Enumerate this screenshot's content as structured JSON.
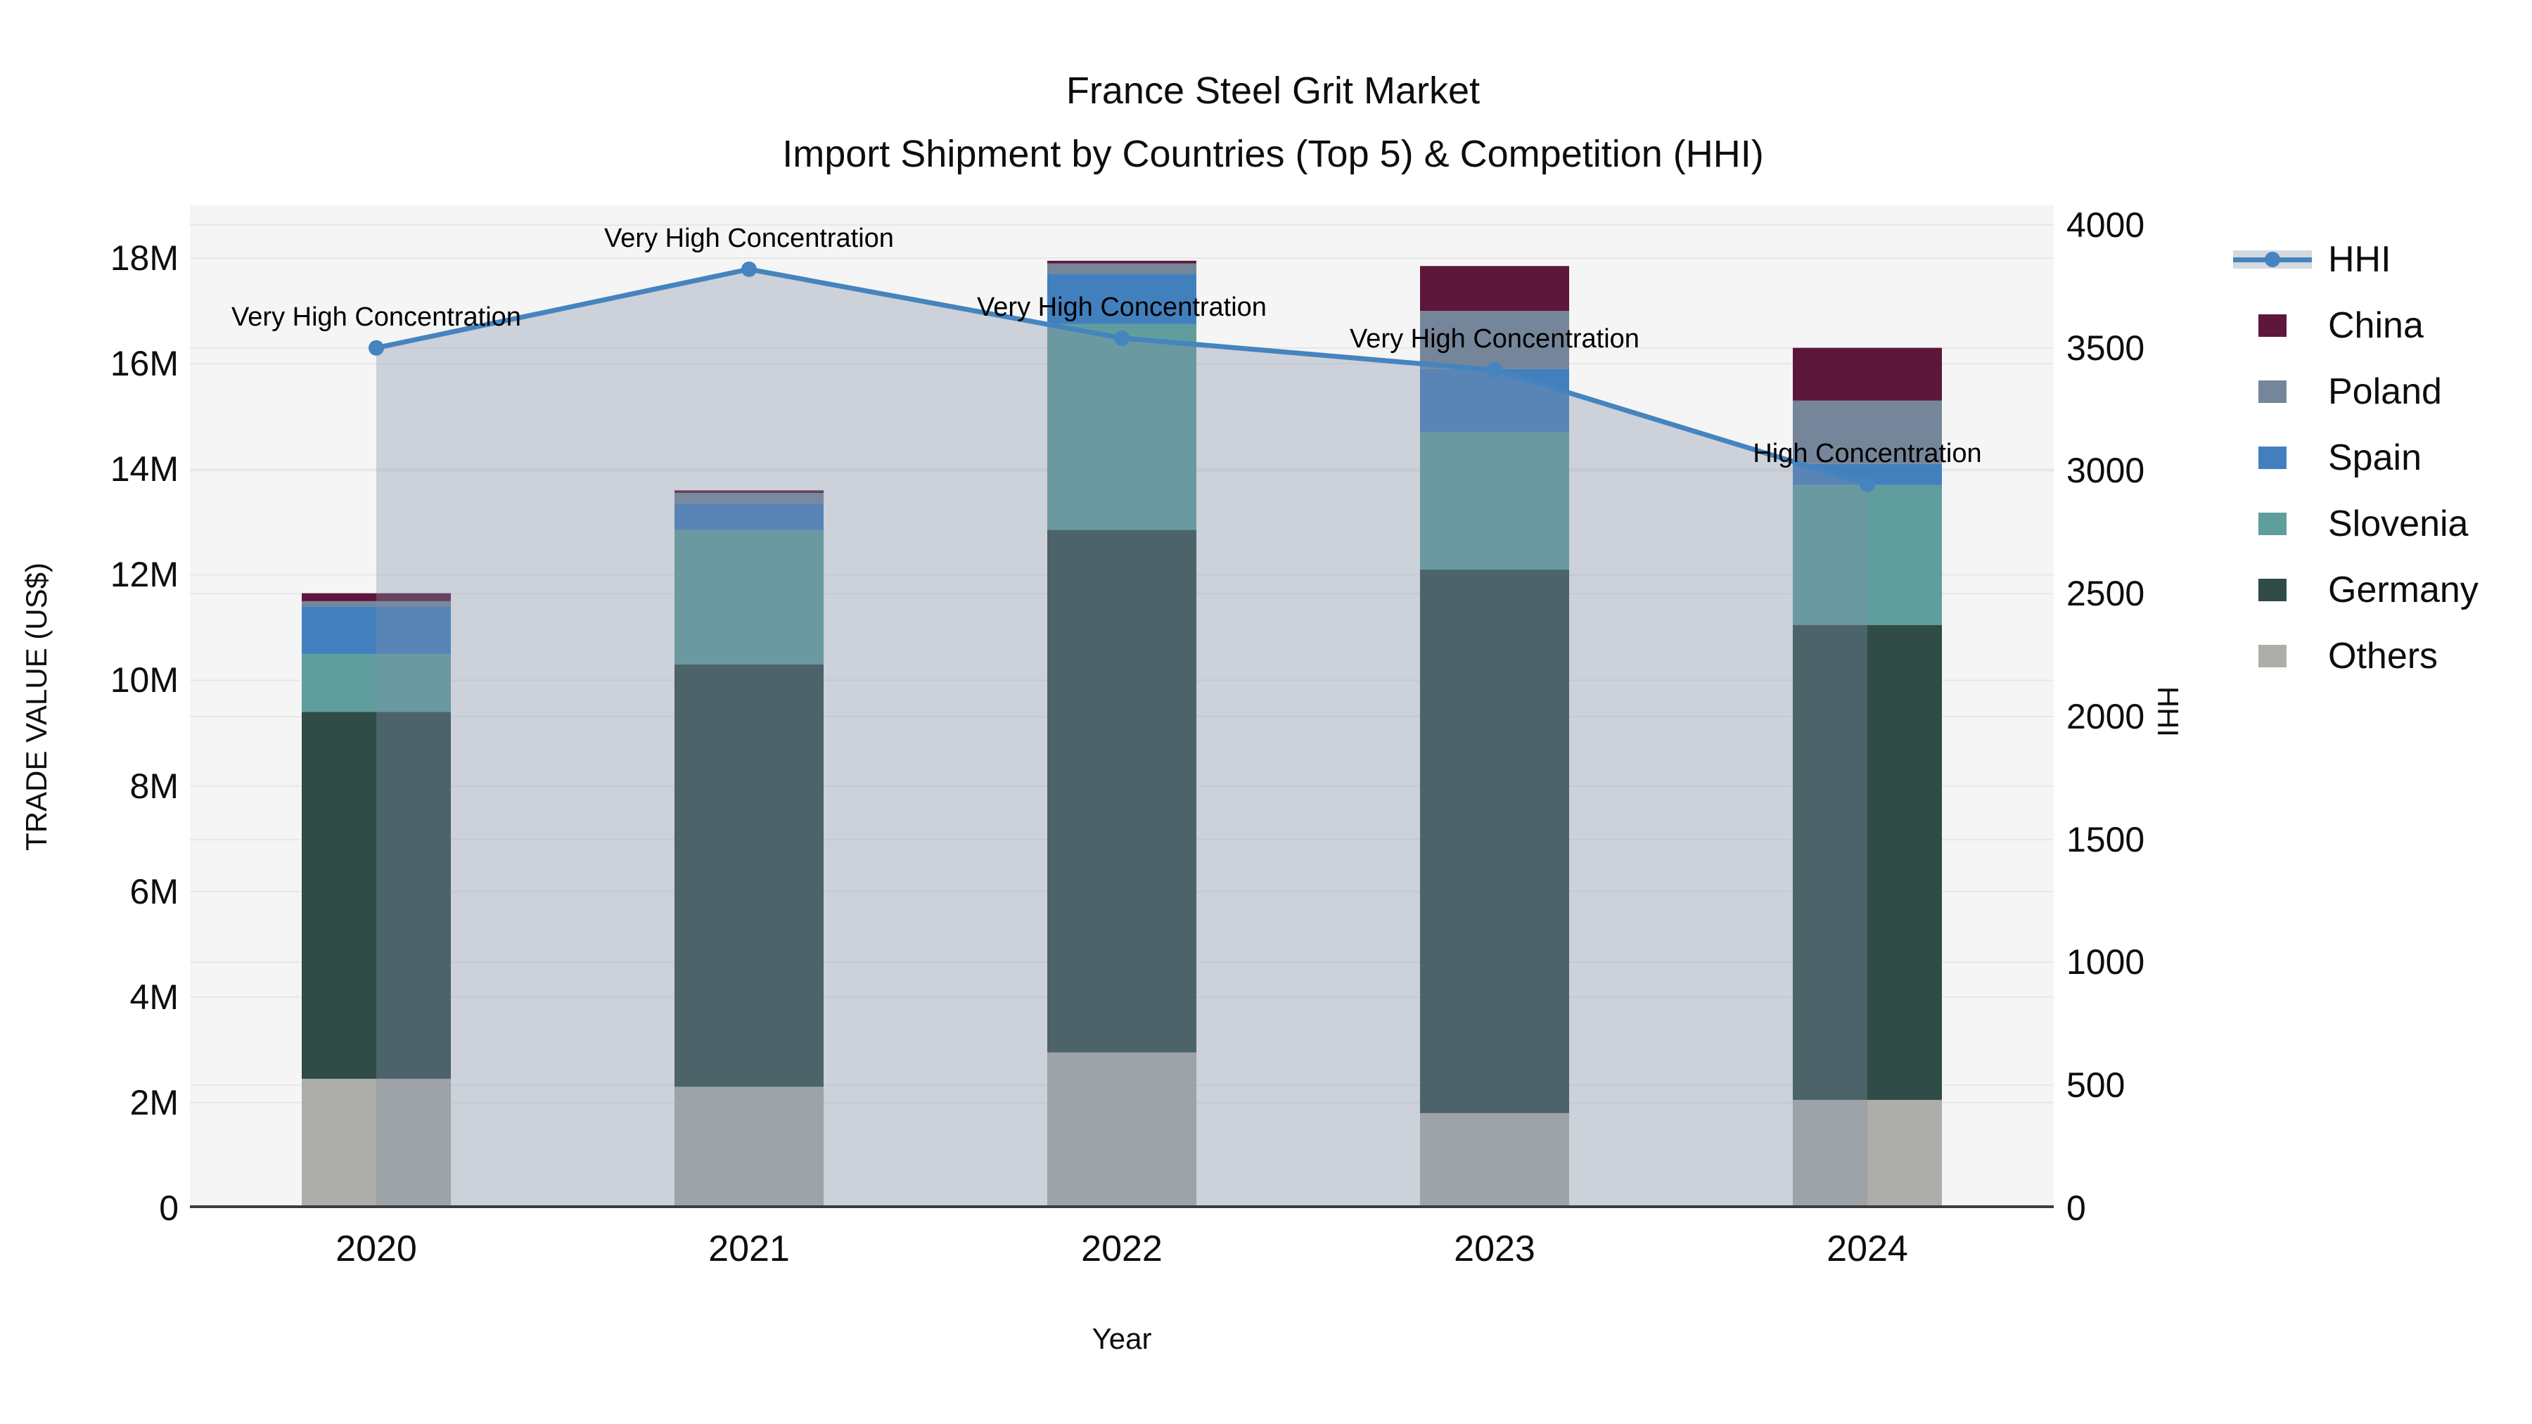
{
  "title": {
    "line1": "France Steel Grit Market",
    "line2": "Import Shipment by Countries (Top 5) & Competition (HHI)"
  },
  "axes": {
    "x": {
      "label": "Year"
    },
    "y_left": {
      "label": "TRADE VALUE (US$)"
    },
    "y_right": {
      "label": "HHI"
    }
  },
  "chart_data": {
    "type": "bar",
    "subtype": "stacked bars (trade value) with HHI line + translucent area overlay",
    "categories": [
      "2020",
      "2021",
      "2022",
      "2023",
      "2024"
    ],
    "values_unit": "million US$",
    "stack_order_bottom_to_top": [
      "Others",
      "Germany",
      "Slovenia",
      "Spain",
      "Poland",
      "China"
    ],
    "series": [
      {
        "name": "China",
        "color": "#5d173b",
        "values": [
          0.15,
          0.05,
          0.05,
          0.85,
          1.0
        ]
      },
      {
        "name": "Poland",
        "color": "#75869a",
        "values": [
          0.1,
          0.2,
          0.2,
          1.1,
          1.2
        ]
      },
      {
        "name": "Spain",
        "color": "#4280bd",
        "values": [
          0.9,
          0.5,
          0.95,
          1.2,
          0.4
        ]
      },
      {
        "name": "Slovenia",
        "color": "#5f9e9d",
        "values": [
          1.1,
          2.55,
          3.9,
          2.6,
          2.65
        ]
      },
      {
        "name": "Germany",
        "color": "#2f4c47",
        "values": [
          6.95,
          8.0,
          9.9,
          10.3,
          9.0
        ]
      },
      {
        "name": "Others",
        "color": "#adaea9",
        "values": [
          2.45,
          2.3,
          2.95,
          1.8,
          2.05
        ]
      }
    ],
    "bar_totals_musd": [
      11.65,
      13.6,
      17.95,
      17.85,
      16.3
    ],
    "line_series": {
      "name": "HHI",
      "values": [
        3500,
        3820,
        3540,
        3410,
        2945
      ],
      "color": "#4584be",
      "area_fill": "rgba(128,142,168,0.35)"
    },
    "annotations": [
      {
        "category": "2020",
        "text": "Very High Concentration"
      },
      {
        "category": "2021",
        "text": "Very High Concentration"
      },
      {
        "category": "2022",
        "text": "Very High Concentration"
      },
      {
        "category": "2023",
        "text": "Very High Concentration"
      },
      {
        "category": "2024",
        "text": "High Concentration"
      }
    ],
    "y_left_ticks": [
      "0",
      "2M",
      "4M",
      "6M",
      "8M",
      "10M",
      "12M",
      "14M",
      "16M",
      "18M"
    ],
    "y_left_tick_values": [
      0,
      2,
      4,
      6,
      8,
      10,
      12,
      14,
      16,
      18
    ],
    "y_left_range_musd": [
      0,
      19
    ],
    "y_right_ticks": [
      "0",
      "500",
      "1000",
      "1500",
      "2000",
      "2500",
      "3000",
      "3500",
      "4000"
    ],
    "y_right_tick_values": [
      0,
      500,
      1000,
      1500,
      2000,
      2500,
      3000,
      3500,
      4000
    ],
    "y_right_range": [
      0,
      4080
    ],
    "grid": true,
    "legend_position": "right-outside-top",
    "legend_order": [
      "HHI",
      "China",
      "Poland",
      "Spain",
      "Slovenia",
      "Germany",
      "Others"
    ],
    "plot_bg": "#f5f5f5",
    "grid_color": "#e7e7e7",
    "axis_line_color": "#3c3c3c"
  }
}
